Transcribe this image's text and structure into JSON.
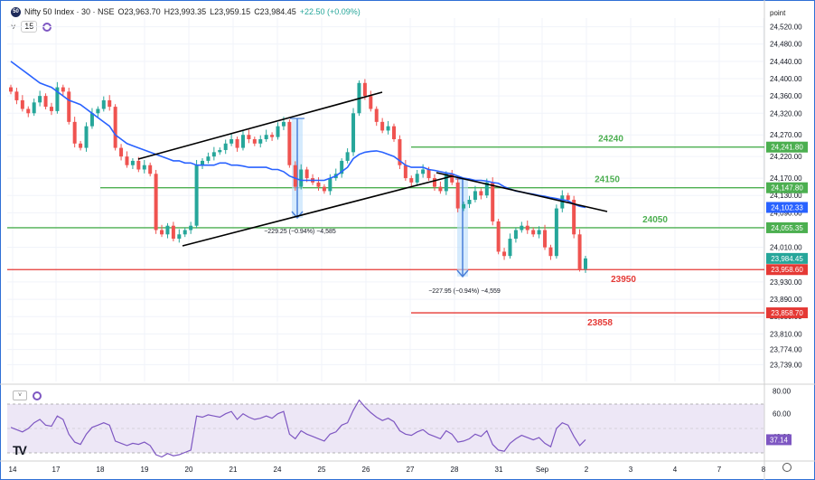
{
  "header": {
    "symbol": "Nifty 50 Index · 30 · NSE",
    "open": "O23,963.70",
    "high": "H23,993.35",
    "low": "L23,959.15",
    "close": "C23,984.45",
    "change": "+22.50 (+0.09%)",
    "interval_box": "15"
  },
  "price_scale_header": "point",
  "colors": {
    "up": "#26a69a",
    "down": "#ef5350",
    "green_line": "#4caf50",
    "red_line": "#e53935",
    "ma": "#2962ff",
    "measure": "#4a7fd8",
    "rsi": "#7e57c2"
  },
  "chart_data": [
    {
      "type": "candlestick",
      "title": "",
      "x_tick_labels": [
        "14",
        "17",
        "18",
        "19",
        "20",
        "21",
        "24",
        "25",
        "26",
        "27",
        "28",
        "31",
        "Sep",
        "2",
        "3",
        "4",
        "7",
        "8"
      ],
      "y_tick_labels": [
        "24,520.00",
        "24,480.00",
        "24,440.00",
        "24,400.00",
        "24,360.00",
        "24,320.00",
        "24,270.00",
        "24,220.00",
        "24,170.00",
        "24,130.00",
        "24,090.00",
        "24,010.00",
        "23,930.00",
        "23,890.00",
        "23,850.00",
        "23,810.00",
        "23,774.00",
        "23,739.00"
      ],
      "ylim": [
        23700,
        24540
      ],
      "price_badges": [
        {
          "value": "24,241.80",
          "price": 24241.8,
          "color": "#4caf50"
        },
        {
          "value": "24,147.80",
          "price": 24147.8,
          "color": "#4caf50"
        },
        {
          "value": "24,102.33",
          "price": 24102.33,
          "color": "#2962ff"
        },
        {
          "value": "24,055.35",
          "price": 24055.35,
          "color": "#4caf50"
        },
        {
          "value": "23,984.45",
          "price": 23984.45,
          "color": "#26a69a"
        },
        {
          "value": "23,958.60",
          "price": 23958.6,
          "color": "#e53935"
        },
        {
          "value": "23,858.70",
          "price": 23858.7,
          "color": "#e53935"
        }
      ],
      "level_labels": [
        {
          "text": "24240",
          "price": 24241.8,
          "color": "#4caf50"
        },
        {
          "text": "24150",
          "price": 24147.8,
          "color": "#4caf50"
        },
        {
          "text": "24050",
          "price": 24055.35,
          "color": "#4caf50"
        },
        {
          "text": "23950",
          "price": 23958.6,
          "color": "#e53935"
        },
        {
          "text": "23858",
          "price": 23858.7,
          "color": "#e53935"
        }
      ],
      "measure_labels": [
        {
          "text": "−229.25 (−0.94%) −4,585"
        },
        {
          "text": "−227.95 (−0.94%) −4,559"
        }
      ],
      "closes": [
        24370,
        24350,
        24330,
        24320,
        24345,
        24360,
        24335,
        24325,
        24380,
        24370,
        24300,
        24250,
        24240,
        24290,
        24320,
        24330,
        24350,
        24335,
        24240,
        24220,
        24200,
        24210,
        24190,
        24200,
        24180,
        24050,
        24040,
        24060,
        24030,
        24040,
        24050,
        24060,
        24200,
        24210,
        24220,
        24230,
        24235,
        24250,
        24260,
        24240,
        24270,
        24260,
        24250,
        24260,
        24270,
        24265,
        24290,
        24300,
        24200,
        24150,
        24190,
        24170,
        24160,
        24150,
        24140,
        24170,
        24180,
        24210,
        24230,
        24320,
        24390,
        24360,
        24330,
        24300,
        24280,
        24290,
        24260,
        24200,
        24170,
        24160,
        24180,
        24190,
        24170,
        24150,
        24140,
        24180,
        24160,
        24100,
        24110,
        24120,
        24140,
        24130,
        24160,
        24070,
        24000,
        23990,
        24030,
        24050,
        24060,
        24050,
        24040,
        24050,
        24010,
        23990,
        24100,
        24130,
        24120,
        24040,
        23960,
        23984.45
      ],
      "ma": [
        24440,
        24430,
        24420,
        24410,
        24400,
        24390,
        24385,
        24380,
        24370,
        24360,
        24350,
        24345,
        24340,
        24330,
        24320,
        24310,
        24300,
        24290,
        24270,
        24260,
        24250,
        24245,
        24240,
        24235,
        24230,
        24225,
        24220,
        24215,
        24210,
        24210,
        24205,
        24205,
        24200,
        24200,
        24200,
        24200,
        24205,
        24205,
        24200,
        24200,
        24198,
        24195,
        24195,
        24195,
        24195,
        24190,
        24190,
        24185,
        24175,
        24170,
        24165,
        24165,
        24165,
        24165,
        24165,
        24170,
        24175,
        24185,
        24195,
        24215,
        24225,
        24230,
        24232,
        24233,
        24230,
        24225,
        24220,
        24210,
        24200,
        24195,
        24195,
        24195,
        24190,
        24188,
        24185,
        24182,
        24180,
        24175,
        24170,
        24168,
        24165,
        24165,
        24163,
        24160,
        24158,
        24150,
        24145,
        24140,
        24138,
        24135,
        24133,
        24130,
        24128,
        24125,
        24123,
        24120,
        24118,
        24110,
        24105,
        24102.33
      ]
    },
    {
      "type": "line",
      "title": "",
      "y_tick_labels": [
        "80.00",
        "60.00",
        "40.00"
      ],
      "ylim": [
        20,
        82
      ],
      "badge": "37.14",
      "values": [
        48,
        46,
        44,
        47,
        52,
        55,
        50,
        49,
        58,
        55,
        42,
        35,
        33,
        42,
        48,
        50,
        52,
        50,
        36,
        34,
        32,
        34,
        33,
        35,
        32,
        24,
        22,
        25,
        23,
        24,
        26,
        28,
        58,
        57,
        59,
        58,
        57,
        60,
        62,
        55,
        60,
        57,
        55,
        56,
        58,
        56,
        60,
        62,
        42,
        38,
        45,
        42,
        40,
        38,
        36,
        42,
        44,
        50,
        52,
        63,
        72,
        66,
        61,
        57,
        54,
        56,
        53,
        45,
        42,
        41,
        44,
        46,
        42,
        40,
        38,
        45,
        42,
        35,
        36,
        38,
        42,
        40,
        45,
        33,
        28,
        27,
        34,
        38,
        41,
        39,
        37,
        39,
        34,
        31,
        47,
        52,
        50,
        40,
        32,
        37.14
      ]
    }
  ]
}
